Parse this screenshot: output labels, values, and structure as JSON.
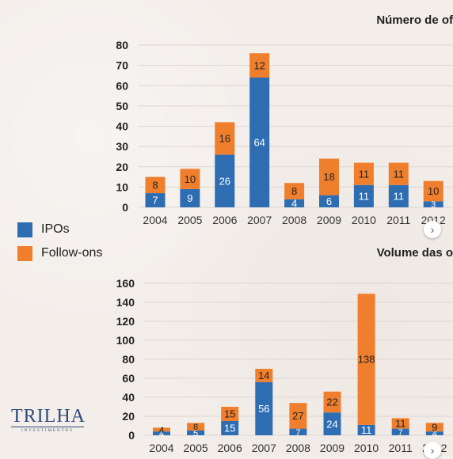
{
  "colors": {
    "ipo": "#2f6db3",
    "follow": "#ef7f2c"
  },
  "legend": {
    "ipo_label": "IPOs",
    "follow_label": "Follow-ons"
  },
  "logo": {
    "main": "TRILHA",
    "sub": "INVESTIMENTOS"
  },
  "nav": {
    "next_glyph": "›"
  },
  "chart_data": [
    {
      "type": "bar",
      "stacked": true,
      "title": "Número de of",
      "categories": [
        "2004",
        "2005",
        "2006",
        "2007",
        "2008",
        "2009",
        "2010",
        "2011",
        "2012"
      ],
      "series": [
        {
          "name": "IPOs",
          "values": [
            7,
            9,
            26,
            64,
            4,
            6,
            11,
            11,
            3
          ]
        },
        {
          "name": "Follow-ons",
          "values": [
            8,
            10,
            16,
            12,
            8,
            18,
            11,
            11,
            10
          ]
        }
      ],
      "yticks": [
        0,
        10,
        20,
        30,
        40,
        50,
        60,
        70,
        80
      ],
      "ylim": [
        0,
        80
      ],
      "grid": true
    },
    {
      "type": "bar",
      "stacked": true,
      "title": "Volume das o",
      "categories": [
        "2004",
        "2005",
        "2006",
        "2007",
        "2008",
        "2009",
        "2010",
        "2011",
        "2012"
      ],
      "series": [
        {
          "name": "IPOs",
          "values": [
            4,
            5,
            15,
            56,
            7,
            24,
            11,
            7,
            4
          ]
        },
        {
          "name": "Follow-ons",
          "values": [
            4,
            8,
            15,
            14,
            27,
            22,
            138,
            11,
            9
          ]
        }
      ],
      "yticks": [
        0,
        20,
        40,
        60,
        80,
        100,
        120,
        140,
        160
      ],
      "ylim": [
        0,
        160
      ],
      "grid": true
    }
  ]
}
